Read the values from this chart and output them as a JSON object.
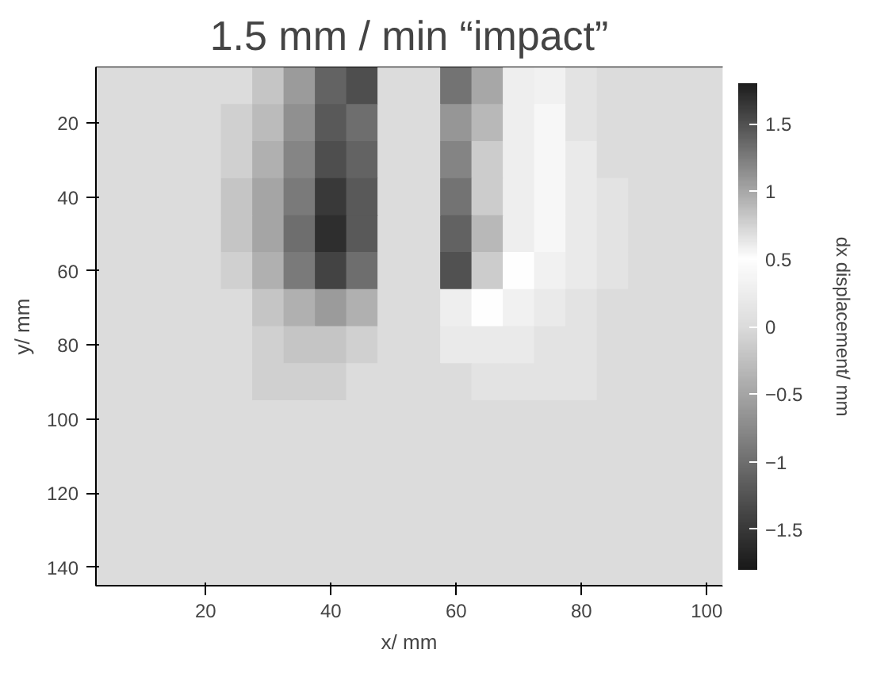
{
  "chart_data": {
    "type": "heatmap",
    "title": "1.5 mm / min “impact”",
    "xlabel": "x/ mm",
    "ylabel": "y/ mm",
    "clabel": "dx displacement/ mm",
    "categories": [
      null,
      null,
      null,
      "20",
      null,
      null,
      null,
      "40",
      null,
      null,
      null,
      "60",
      null,
      null,
      null,
      "80",
      null,
      null,
      null,
      "100"
    ],
    "y_categories": [
      null,
      "20",
      null,
      "40",
      null,
      "60",
      null,
      "80",
      null,
      "100",
      null,
      "120",
      null,
      "140"
    ],
    "cells": [
      [
        0,
        0,
        0,
        0,
        0,
        -0.2,
        -0.6,
        -1.1,
        -1.3,
        0,
        0,
        1.3,
        1.0,
        0.6,
        0.3,
        0.1,
        0,
        0,
        0,
        0
      ],
      [
        0,
        0,
        0,
        0,
        -0.1,
        -0.3,
        -0.7,
        -1.2,
        -1.0,
        0,
        0,
        1.1,
        0.9,
        0.6,
        0.4,
        0.1,
        0,
        0,
        0,
        0
      ],
      [
        0,
        0,
        0,
        0,
        -0.1,
        -0.4,
        -0.8,
        -1.3,
        -1.1,
        0,
        0,
        1.2,
        0.8,
        0.6,
        0.4,
        0.2,
        0,
        0,
        0,
        0
      ],
      [
        0,
        0,
        0,
        0,
        -0.2,
        -0.5,
        -0.9,
        -1.5,
        -1.2,
        0,
        0,
        1.3,
        0.8,
        0.6,
        0.4,
        0.2,
        0.1,
        0,
        0,
        0
      ],
      [
        0,
        0,
        0,
        0,
        -0.2,
        -0.5,
        -1.0,
        -1.6,
        -1.2,
        0,
        0,
        1.4,
        0.9,
        0.6,
        0.4,
        0.2,
        0.1,
        0,
        0,
        0
      ],
      [
        0,
        0,
        0,
        0,
        -0.1,
        -0.4,
        -0.9,
        -1.4,
        -1.0,
        0,
        0,
        1.5,
        0.8,
        0.5,
        0.3,
        0.2,
        0.1,
        0,
        0,
        0
      ],
      [
        0,
        0,
        0,
        0,
        0,
        -0.2,
        -0.4,
        -0.6,
        -0.4,
        0,
        0,
        0.6,
        0.5,
        0.3,
        0.2,
        0.1,
        0,
        0,
        0,
        0
      ],
      [
        0,
        0,
        0,
        0,
        0,
        -0.1,
        -0.2,
        -0.2,
        -0.1,
        0,
        0,
        0.2,
        0.2,
        0.2,
        0.1,
        0.1,
        0,
        0,
        0,
        0
      ],
      [
        0,
        0,
        0,
        0,
        0,
        -0.1,
        -0.1,
        -0.1,
        0,
        0,
        0,
        0,
        0.1,
        0.1,
        0.1,
        0.1,
        0,
        0,
        0,
        0
      ],
      [
        0,
        0,
        0,
        0,
        0,
        0,
        0,
        0,
        0,
        0,
        0,
        0,
        0,
        0,
        0,
        0,
        0,
        0,
        0,
        0
      ],
      [
        0,
        0,
        0,
        0,
        0,
        0,
        0,
        0,
        0,
        0,
        0,
        0,
        0,
        0,
        0,
        0,
        0,
        0,
        0,
        0
      ],
      [
        0,
        0,
        0,
        0,
        0,
        0,
        0,
        0,
        0,
        0,
        0,
        0,
        0,
        0,
        0,
        0,
        0,
        0,
        0,
        0
      ],
      [
        0,
        0,
        0,
        0,
        0,
        0,
        0,
        0,
        0,
        0,
        0,
        0,
        0,
        0,
        0,
        0,
        0,
        0,
        0,
        0
      ],
      [
        0,
        0,
        0,
        0,
        0,
        0,
        0,
        0,
        0,
        0,
        0,
        0,
        0,
        0,
        0,
        0,
        0,
        0,
        0,
        0
      ]
    ],
    "clim": [
      -1.8,
      1.8
    ],
    "cticks": [
      -1.5,
      -1,
      -0.5,
      0,
      0.5,
      1,
      1.5
    ]
  }
}
